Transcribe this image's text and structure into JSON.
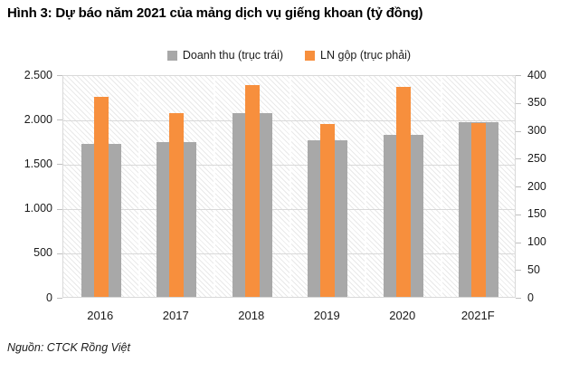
{
  "title": "Hình 3: Dự báo năm 2021 của mảng dịch vụ giếng khoan (tỷ đồng)",
  "source": "Nguồn: CTCK Rồng Việt",
  "chart_data": {
    "type": "bar",
    "title": "Hình 3: Dự báo năm 2021 của mảng dịch vụ giếng khoan (tỷ đồng)",
    "categories": [
      "2016",
      "2017",
      "2018",
      "2019",
      "2020",
      "2021F"
    ],
    "series": [
      {
        "name": "Doanh thu (trục trái)",
        "axis": "left",
        "color": "#a8a8a8",
        "values": [
          1715,
          1735,
          2060,
          1760,
          1820,
          1960
        ]
      },
      {
        "name": "LN gộp (trục phải)",
        "axis": "right",
        "color": "#f78f3d",
        "values": [
          360,
          330,
          380,
          310,
          378,
          313
        ]
      }
    ],
    "left_axis": {
      "min": 0,
      "max": 2500,
      "step": 500,
      "tick_labels": [
        "2.500",
        "2.000",
        "1.500",
        "1.000",
        "500",
        "0"
      ]
    },
    "right_axis": {
      "min": 0,
      "max": 400,
      "step": 50,
      "tick_labels": [
        "400",
        "350",
        "300",
        "250",
        "200",
        "150",
        "100",
        "50",
        "0"
      ]
    },
    "legend_position": "top",
    "grid": true,
    "plot_background": "light-downward-diagonal-hatch"
  }
}
